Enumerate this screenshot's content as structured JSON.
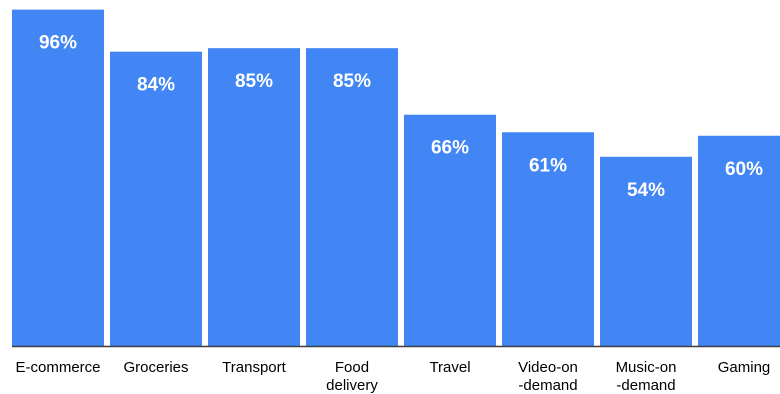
{
  "chart_data": {
    "type": "bar",
    "categories": [
      [
        "E-commerce"
      ],
      [
        "Groceries"
      ],
      [
        "Transport"
      ],
      [
        "Food",
        "delivery"
      ],
      [
        "Travel"
      ],
      [
        "Video-on",
        "-demand"
      ],
      [
        "Music-on",
        "-demand"
      ],
      [
        "Gaming"
      ]
    ],
    "values": [
      96,
      84,
      85,
      85,
      66,
      61,
      54,
      60
    ],
    "value_labels": [
      "96%",
      "84%",
      "85%",
      "85%",
      "66%",
      "61%",
      "54%",
      "60%"
    ],
    "ylim": [
      0,
      100
    ],
    "grid": false,
    "legend": "none",
    "title": "",
    "xlabel": "",
    "ylabel": ""
  },
  "colors": {
    "bar": "#4285F4",
    "bar_label": "#FFFFFF",
    "axis": "#3C4043",
    "category_label": "#000000"
  }
}
